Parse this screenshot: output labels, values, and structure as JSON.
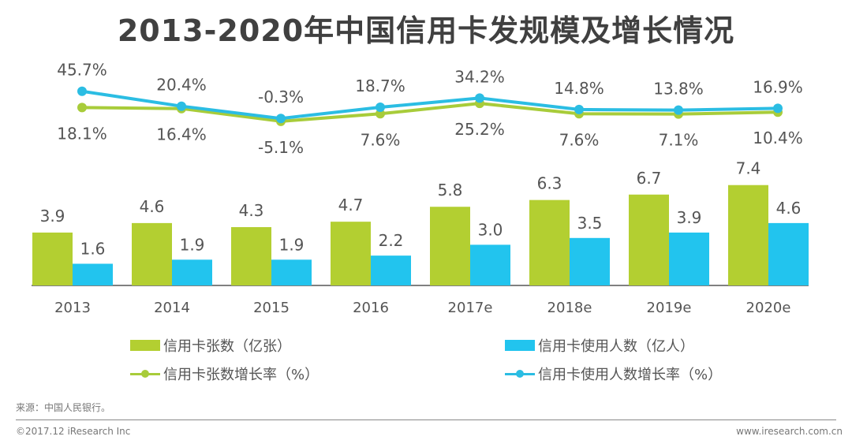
{
  "chart_data": {
    "type": "bar",
    "title": "2013-2020年中国信用卡发规模及增长情况",
    "categories": [
      "2013",
      "2014",
      "2015",
      "2016",
      "2017e",
      "2018e",
      "2019e",
      "2020e"
    ],
    "series": [
      {
        "name": "信用卡张数（亿张）",
        "kind": "bar",
        "color": "#B3CF31",
        "values": [
          3.9,
          4.6,
          4.3,
          4.7,
          5.8,
          6.3,
          6.7,
          7.4
        ],
        "labels": [
          "3.9",
          "4.6",
          "4.3",
          "4.7",
          "5.8",
          "6.3",
          "6.7",
          "7.4"
        ]
      },
      {
        "name": "信用卡使用人数（亿人）",
        "kind": "bar",
        "color": "#22C4EE",
        "values": [
          1.6,
          1.9,
          1.9,
          2.2,
          3.0,
          3.5,
          3.9,
          4.6
        ],
        "labels": [
          "1.6",
          "1.9",
          "1.9",
          "2.2",
          "3.0",
          "3.5",
          "3.9",
          "4.6"
        ]
      },
      {
        "name": "信用卡张数增长率（%）",
        "kind": "line",
        "color": "#A8CC3A",
        "values": [
          18.1,
          16.4,
          -5.1,
          7.6,
          25.2,
          7.6,
          7.1,
          10.4
        ],
        "labels": [
          "18.1%",
          "16.4%",
          "-5.1%",
          "7.6%",
          "25.2%",
          "7.6%",
          "7.1%",
          "10.4%"
        ]
      },
      {
        "name": "信用卡使用人数增长率（%）",
        "kind": "line",
        "color": "#2BBDE3",
        "values": [
          45.7,
          20.4,
          -0.3,
          18.7,
          34.2,
          14.8,
          13.8,
          16.9
        ],
        "labels": [
          "45.7%",
          "20.4%",
          "-0.3%",
          "18.7%",
          "34.2%",
          "14.8%",
          "13.8%",
          "16.9%"
        ]
      }
    ],
    "xlabel": "",
    "ylabel": "",
    "grid": false,
    "legend_position": "bottom",
    "bar_ylim": [
      0,
      8
    ],
    "line_ylim": [
      -10,
      50
    ]
  },
  "legend": {
    "items": [
      {
        "label": "信用卡张数（亿张）",
        "color": "#B3CF31"
      },
      {
        "label": "信用卡使用人数（亿人）",
        "color": "#22C4EE"
      },
      {
        "label": "信用卡张数增长率（%）",
        "color": "#A8CC3A"
      },
      {
        "label": "信用卡使用人数增长率（%）",
        "color": "#2BBDE3"
      }
    ]
  },
  "footer": {
    "source": "来源：中国人民银行。",
    "copyright": "©2017.12 iResearch Inc",
    "site": "www.iresearch.com.cn"
  }
}
